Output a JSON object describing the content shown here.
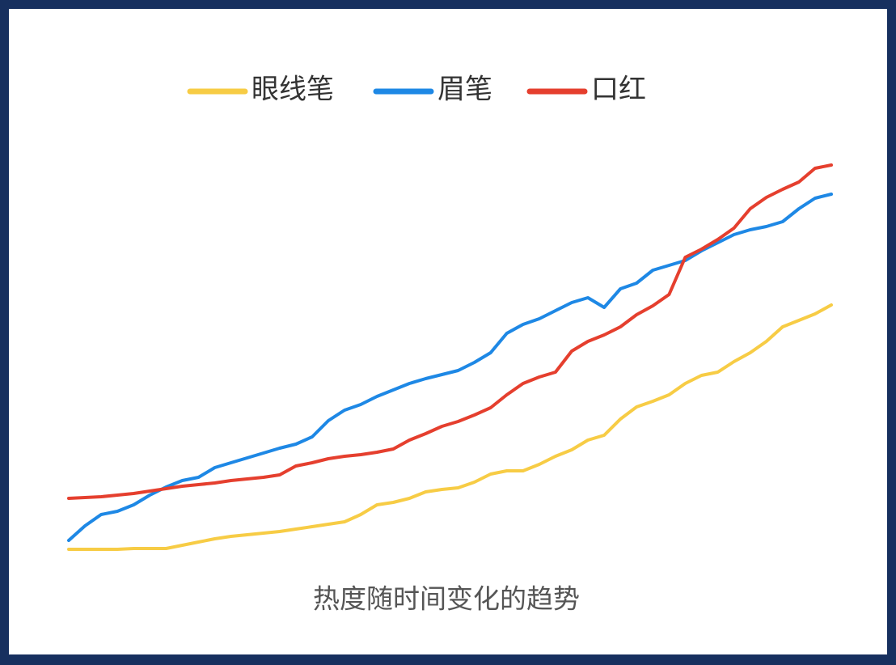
{
  "chart_data": {
    "type": "line",
    "title": "热度随时间变化的趋势",
    "categories": [
      null,
      null,
      null,
      null,
      null,
      null,
      null,
      null,
      null,
      null,
      null,
      null,
      null,
      null,
      null,
      null,
      null,
      null,
      null,
      null,
      null,
      null,
      null,
      null,
      null,
      null,
      null,
      null,
      null,
      null,
      null,
      null,
      null,
      null,
      null,
      null,
      null,
      null,
      null,
      null,
      null,
      null,
      null,
      null,
      null,
      null,
      null,
      null
    ],
    "series": [
      {
        "name": "眼线笔",
        "color": "#f7cc45",
        "values": [
          4.2,
          4.2,
          4.2,
          4.2,
          4.4,
          4.4,
          4.4,
          5.2,
          6,
          6.8,
          7.4,
          7.8,
          8.2,
          8.6,
          9.2,
          9.8,
          10.4,
          11,
          12.8,
          15.2,
          15.8,
          16.8,
          18.4,
          19,
          19.4,
          20.8,
          22.8,
          23.6,
          23.6,
          25.2,
          27.2,
          28.8,
          31.2,
          32.4,
          36.4,
          39.4,
          40.8,
          42.4,
          45.2,
          47.2,
          48,
          50.6,
          52.8,
          55.6,
          59.2,
          60.8,
          62.4,
          64.6
        ]
      },
      {
        "name": "眉笔",
        "color": "#1e88e5",
        "values": [
          6.4,
          10,
          12.8,
          13.6,
          15.2,
          17.6,
          19.6,
          21.2,
          22,
          24.4,
          25.6,
          26.8,
          28,
          29.2,
          30.2,
          32,
          36,
          38.6,
          40,
          42,
          43.6,
          45.2,
          46.4,
          47.4,
          48.4,
          50.4,
          52.8,
          57.6,
          59.8,
          61.2,
          63.2,
          65.2,
          66.4,
          64,
          68.6,
          70,
          73.2,
          74.4,
          75.6,
          78,
          80,
          82,
          83.2,
          84,
          85.2,
          88.4,
          91,
          92
        ]
      },
      {
        "name": "口红",
        "color": "#e53f2e",
        "values": [
          16.8,
          17,
          17.2,
          17.6,
          18,
          18.6,
          19.2,
          19.8,
          20.2,
          20.6,
          21.2,
          21.6,
          22,
          22.6,
          24.8,
          25.6,
          26.6,
          27.2,
          27.6,
          28.2,
          29,
          31.2,
          32.8,
          34.6,
          35.8,
          37.4,
          39.2,
          42.4,
          45.2,
          46.8,
          48,
          53.2,
          55.6,
          57.2,
          59.2,
          62.2,
          64.4,
          67.2,
          76.4,
          78.4,
          80.8,
          83.6,
          88.4,
          91.2,
          93.2,
          95,
          98.4,
          99.2
        ]
      }
    ],
    "legend": "top"
  }
}
